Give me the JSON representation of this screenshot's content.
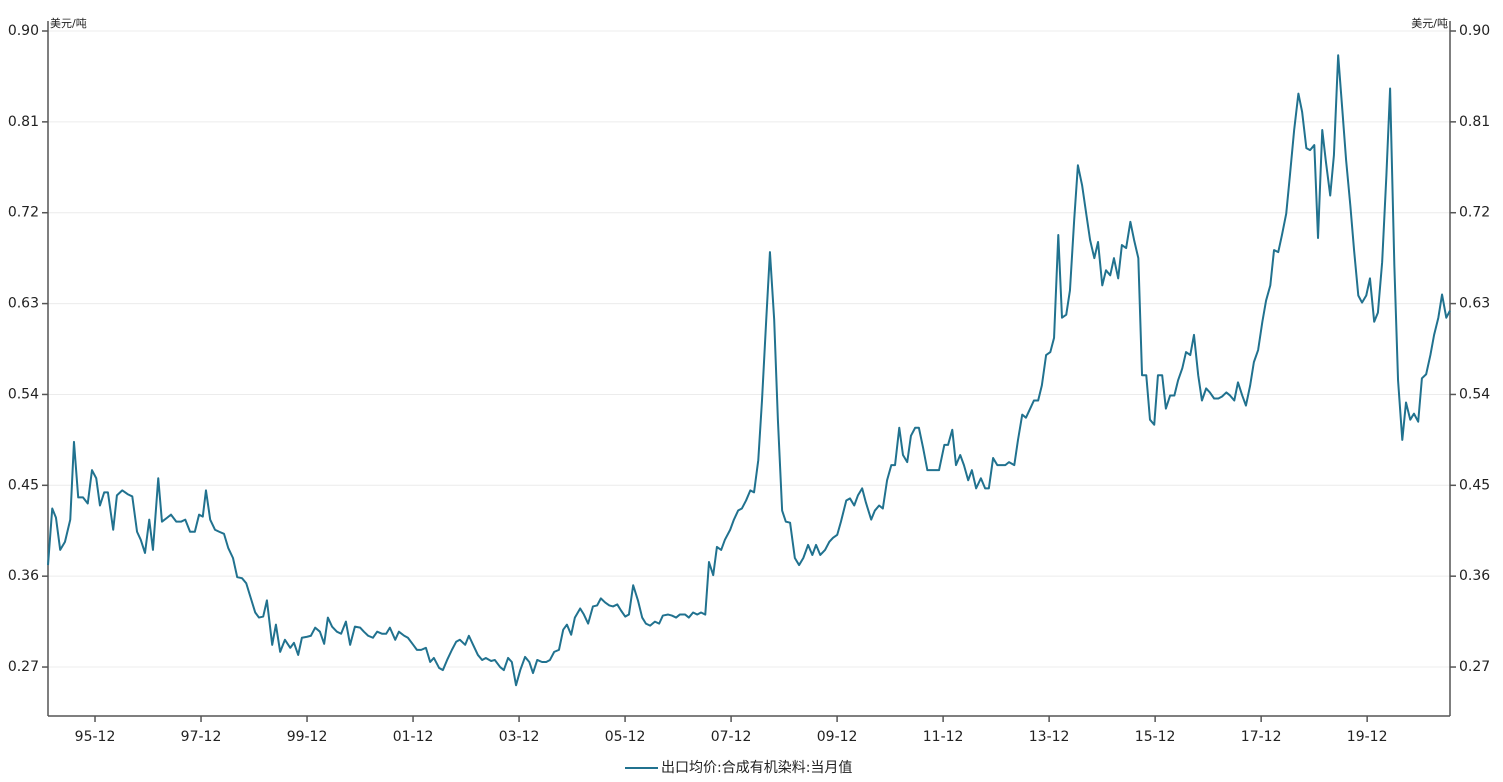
{
  "chart_data": {
    "type": "line",
    "y_label": "美元/吨",
    "y2_label": "美元/吨",
    "xlim": [
      1995.03,
      2021.48
    ],
    "xticks": [
      {
        "value": 1995.917,
        "label": "95-12"
      },
      {
        "value": 1997.917,
        "label": "97-12"
      },
      {
        "value": 1999.917,
        "label": "99-12"
      },
      {
        "value": 2001.917,
        "label": "01-12"
      },
      {
        "value": 2003.917,
        "label": "03-12"
      },
      {
        "value": 2005.917,
        "label": "05-12"
      },
      {
        "value": 2007.917,
        "label": "07-12"
      },
      {
        "value": 2009.917,
        "label": "09-12"
      },
      {
        "value": 2011.917,
        "label": "11-12"
      },
      {
        "value": 2013.917,
        "label": "13-12"
      },
      {
        "value": 2015.917,
        "label": "15-12"
      },
      {
        "value": 2017.917,
        "label": "17-12"
      },
      {
        "value": 2019.917,
        "label": "19-12"
      }
    ],
    "ylim": [
      0.2215,
      0.9
    ],
    "yticks": [
      0.27,
      0.36,
      0.45,
      0.54,
      0.63,
      0.72,
      0.81,
      {
        "value": 0.9,
        "label": "0.90"
      }
    ],
    "y2lim": [
      0.2215,
      0.9
    ],
    "y2ticks": [
      0.27,
      0.36,
      0.45,
      0.54,
      0.63,
      0.72,
      0.81,
      {
        "value": 0.9,
        "label": "0.90"
      }
    ],
    "grid": true,
    "legend": "bottom",
    "x": [
      1995.03,
      1995.11,
      1995.18,
      1995.26,
      1995.35,
      1995.45,
      1995.52,
      1995.6,
      1995.69,
      1995.78,
      1995.86,
      1995.94,
      1996.01,
      1996.09,
      1996.16,
      1996.26,
      1996.33,
      1996.43,
      1996.54,
      1996.62,
      1996.71,
      1996.78,
      1996.86,
      1996.94,
      1997.01,
      1997.11,
      1997.18,
      1997.28,
      1997.35,
      1997.45,
      1997.54,
      1997.62,
      1997.71,
      1997.8,
      1997.88,
      1997.95,
      1998.01,
      1998.09,
      1998.18,
      1998.26,
      1998.35,
      1998.43,
      1998.52,
      1998.6,
      1998.69,
      1998.77,
      1998.84,
      1998.94,
      1999.01,
      1999.09,
      1999.16,
      1999.26,
      1999.33,
      1999.41,
      1999.5,
      1999.6,
      1999.67,
      1999.75,
      1999.82,
      1999.92,
      1999.99,
      2000.07,
      2000.16,
      2000.24,
      2000.31,
      2000.39,
      2000.48,
      2000.56,
      2000.65,
      2000.73,
      2000.82,
      2000.92,
      2000.99,
      2001.07,
      2001.16,
      2001.24,
      2001.33,
      2001.41,
      2001.48,
      2001.58,
      2001.65,
      2001.75,
      2001.82,
      2001.92,
      2001.99,
      2002.07,
      2002.16,
      2002.24,
      2002.31,
      2002.41,
      2002.48,
      2002.56,
      2002.65,
      2002.73,
      2002.8,
      2002.9,
      2002.97,
      2003.05,
      2003.14,
      2003.22,
      2003.29,
      2003.39,
      2003.46,
      2003.56,
      2003.63,
      2003.71,
      2003.78,
      2003.86,
      2003.94,
      2004.03,
      2004.11,
      2004.18,
      2004.26,
      2004.35,
      2004.43,
      2004.5,
      2004.58,
      2004.67,
      2004.75,
      2004.82,
      2004.9,
      2004.97,
      2005.07,
      2005.14,
      2005.22,
      2005.31,
      2005.39,
      2005.46,
      2005.54,
      2005.62,
      2005.69,
      2005.77,
      2005.84,
      2005.92,
      2005.99,
      2006.07,
      2006.16,
      2006.24,
      2006.31,
      2006.39,
      2006.48,
      2006.56,
      2006.63,
      2006.73,
      2006.8,
      2006.88,
      2006.95,
      2007.05,
      2007.12,
      2007.2,
      2007.28,
      2007.35,
      2007.43,
      2007.5,
      2007.58,
      2007.65,
      2007.73,
      2007.8,
      2007.9,
      2007.97,
      2008.05,
      2008.12,
      2008.2,
      2008.28,
      2008.35,
      2008.43,
      2008.5,
      2008.58,
      2008.65,
      2008.73,
      2008.8,
      2008.88,
      2008.95,
      2009.03,
      2009.12,
      2009.2,
      2009.28,
      2009.37,
      2009.45,
      2009.52,
      2009.6,
      2009.69,
      2009.77,
      2009.84,
      2009.92,
      2009.99,
      2010.09,
      2010.16,
      2010.24,
      2010.31,
      2010.39,
      2010.46,
      2010.56,
      2010.63,
      2010.71,
      2010.78,
      2010.86,
      2010.94,
      2011.01,
      2011.09,
      2011.16,
      2011.24,
      2011.31,
      2011.39,
      2011.46,
      2011.54,
      2011.62,
      2011.69,
      2011.77,
      2011.84,
      2011.94,
      2012.01,
      2012.09,
      2012.16,
      2012.24,
      2012.31,
      2012.39,
      2012.46,
      2012.54,
      2012.63,
      2012.71,
      2012.78,
      2012.86,
      2012.94,
      2013.01,
      2013.09,
      2013.16,
      2013.26,
      2013.33,
      2013.41,
      2013.48,
      2013.56,
      2013.63,
      2013.71,
      2013.78,
      2013.86,
      2013.94,
      2014.01,
      2014.09,
      2014.16,
      2014.24,
      2014.31,
      2014.39,
      2014.46,
      2014.54,
      2014.62,
      2014.69,
      2014.77,
      2014.84,
      2014.92,
      2014.99,
      2015.07,
      2015.14,
      2015.22,
      2015.29,
      2015.37,
      2015.45,
      2015.52,
      2015.6,
      2015.67,
      2015.75,
      2015.82,
      2015.9,
      2015.97,
      2016.05,
      2016.12,
      2016.2,
      2016.28,
      2016.35,
      2016.43,
      2016.5,
      2016.58,
      2016.65,
      2016.73,
      2016.8,
      2016.88,
      2016.95,
      2017.03,
      2017.11,
      2017.18,
      2017.26,
      2017.33,
      2017.41,
      2017.48,
      2017.56,
      2017.63,
      2017.71,
      2017.78,
      2017.86,
      2017.94,
      2018.01,
      2018.09,
      2018.16,
      2018.24,
      2018.31,
      2018.39,
      2018.46,
      2018.54,
      2018.62,
      2018.69,
      2018.77,
      2018.84,
      2018.92,
      2018.99,
      2019.07,
      2019.14,
      2019.22,
      2019.29,
      2019.37,
      2019.45,
      2019.52,
      2019.6,
      2019.67,
      2019.75,
      2019.82,
      2019.9,
      2019.97,
      2020.05,
      2020.12,
      2020.2,
      2020.28,
      2020.35,
      2020.43,
      2020.5,
      2020.58,
      2020.65,
      2020.73,
      2020.8,
      2020.88,
      2020.95,
      2021.03,
      2021.11,
      2021.18,
      2021.26,
      2021.33,
      2021.41,
      2021.48
    ],
    "series": [
      {
        "name": "出口均价:合成有机染料:当月值",
        "color": "#21728f",
        "values": [
          0.371,
          0.427,
          0.418,
          0.386,
          0.394,
          0.416,
          0.493,
          0.438,
          0.438,
          0.432,
          0.465,
          0.457,
          0.43,
          0.443,
          0.443,
          0.406,
          0.44,
          0.445,
          0.441,
          0.439,
          0.404,
          0.396,
          0.383,
          0.416,
          0.386,
          0.457,
          0.414,
          0.418,
          0.421,
          0.414,
          0.414,
          0.416,
          0.404,
          0.404,
          0.421,
          0.419,
          0.445,
          0.416,
          0.406,
          0.404,
          0.402,
          0.388,
          0.378,
          0.359,
          0.358,
          0.353,
          0.341,
          0.324,
          0.319,
          0.32,
          0.336,
          0.292,
          0.312,
          0.285,
          0.297,
          0.289,
          0.294,
          0.282,
          0.299,
          0.3,
          0.301,
          0.309,
          0.305,
          0.293,
          0.319,
          0.31,
          0.305,
          0.303,
          0.315,
          0.292,
          0.31,
          0.309,
          0.305,
          0.301,
          0.299,
          0.305,
          0.303,
          0.303,
          0.309,
          0.297,
          0.305,
          0.301,
          0.299,
          0.292,
          0.287,
          0.287,
          0.289,
          0.275,
          0.279,
          0.269,
          0.267,
          0.277,
          0.287,
          0.295,
          0.297,
          0.292,
          0.301,
          0.292,
          0.282,
          0.277,
          0.279,
          0.276,
          0.277,
          0.27,
          0.267,
          0.279,
          0.275,
          0.252,
          0.267,
          0.28,
          0.275,
          0.264,
          0.277,
          0.275,
          0.275,
          0.277,
          0.285,
          0.287,
          0.307,
          0.312,
          0.302,
          0.319,
          0.328,
          0.322,
          0.313,
          0.33,
          0.331,
          0.338,
          0.334,
          0.331,
          0.33,
          0.332,
          0.326,
          0.32,
          0.322,
          0.351,
          0.336,
          0.319,
          0.313,
          0.311,
          0.315,
          0.313,
          0.321,
          0.322,
          0.321,
          0.319,
          0.322,
          0.322,
          0.319,
          0.324,
          0.322,
          0.324,
          0.322,
          0.374,
          0.361,
          0.389,
          0.386,
          0.396,
          0.406,
          0.416,
          0.425,
          0.427,
          0.435,
          0.445,
          0.443,
          0.475,
          0.534,
          0.614,
          0.681,
          0.614,
          0.515,
          0.425,
          0.414,
          0.413,
          0.378,
          0.371,
          0.378,
          0.391,
          0.381,
          0.391,
          0.381,
          0.386,
          0.394,
          0.398,
          0.401,
          0.414,
          0.435,
          0.437,
          0.43,
          0.44,
          0.447,
          0.433,
          0.416,
          0.425,
          0.43,
          0.427,
          0.455,
          0.47,
          0.47,
          0.507,
          0.48,
          0.473,
          0.499,
          0.507,
          0.507,
          0.487,
          0.465,
          0.465,
          0.465,
          0.465,
          0.49,
          0.49,
          0.505,
          0.47,
          0.48,
          0.47,
          0.455,
          0.465,
          0.447,
          0.457,
          0.447,
          0.447,
          0.477,
          0.47,
          0.47,
          0.47,
          0.473,
          0.47,
          0.495,
          0.52,
          0.517,
          0.526,
          0.534,
          0.534,
          0.549,
          0.579,
          0.582,
          0.596,
          0.698,
          0.616,
          0.619,
          0.643,
          0.713,
          0.767,
          0.747,
          0.718,
          0.693,
          0.675,
          0.691,
          0.648,
          0.663,
          0.658,
          0.675,
          0.655,
          0.688,
          0.685,
          0.711,
          0.693,
          0.675,
          0.559,
          0.559,
          0.515,
          0.51,
          0.559,
          0.559,
          0.526,
          0.539,
          0.539,
          0.554,
          0.566,
          0.582,
          0.579,
          0.599,
          0.559,
          0.534,
          0.546,
          0.542,
          0.536,
          0.536,
          0.538,
          0.542,
          0.539,
          0.534,
          0.552,
          0.539,
          0.529,
          0.549,
          0.572,
          0.584,
          0.612,
          0.633,
          0.648,
          0.683,
          0.681,
          0.698,
          0.719,
          0.757,
          0.802,
          0.838,
          0.82,
          0.784,
          0.782,
          0.787,
          0.695,
          0.802,
          0.77,
          0.737,
          0.777,
          0.876,
          0.821,
          0.772,
          0.727,
          0.683,
          0.638,
          0.631,
          0.638,
          0.655,
          0.612,
          0.621,
          0.671,
          0.757,
          0.843,
          0.668,
          0.554,
          0.495,
          0.532,
          0.515,
          0.521,
          0.513,
          0.556,
          0.56,
          0.579,
          0.599,
          0.616,
          0.639,
          0.616,
          0.623
        ]
      }
    ]
  }
}
